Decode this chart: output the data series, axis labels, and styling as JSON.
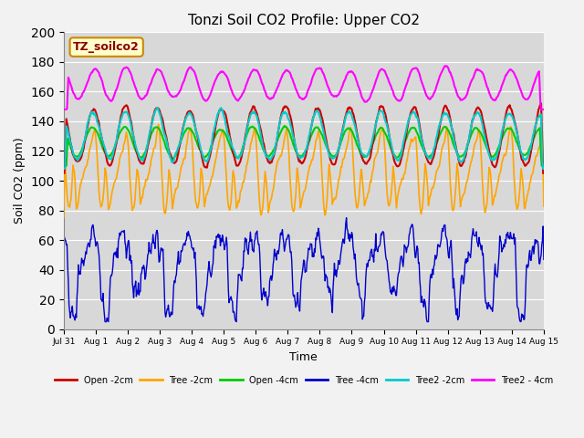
{
  "title": "Tonzi Soil CO2 Profile: Upper CO2",
  "xlabel": "Time",
  "ylabel": "Soil CO2 (ppm)",
  "ylim": [
    0,
    200
  ],
  "yticks": [
    0,
    20,
    40,
    60,
    80,
    100,
    120,
    140,
    160,
    180,
    200
  ],
  "label_box": "TZ_soilco2",
  "plot_bg": "#d8d8d8",
  "fig_bg": "#f2f2f2",
  "legend_entries": [
    "Open -2cm",
    "Tree -2cm",
    "Open -4cm",
    "Tree -4cm",
    "Tree2 -2cm",
    "Tree2 - 4cm"
  ],
  "line_colors": [
    "#cc0000",
    "#ffa500",
    "#00cc00",
    "#0000cc",
    "#00cccc",
    "#ff00ff"
  ],
  "tick_labels": [
    "Jul 31",
    "Aug 1",
    "Aug 2",
    "Aug 3",
    "Aug 4",
    "Aug 5",
    "Aug 6",
    "Aug 7",
    "Aug 8",
    "Aug 9",
    "Aug 10",
    "Aug 11",
    "Aug 12",
    "Aug 13",
    "Aug 14",
    "Aug 15"
  ]
}
